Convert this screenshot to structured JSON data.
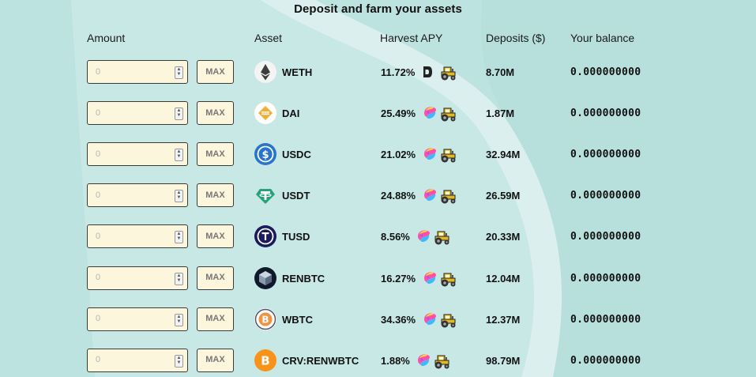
{
  "title": "Deposit and farm your assets",
  "headers": {
    "amount": "Amount",
    "asset": "Asset",
    "apy": "Harvest APY",
    "deposits": "Deposits ($)",
    "balance": "Your balance"
  },
  "max_label": "MAX",
  "amount_placeholder": "0",
  "rows": [
    {
      "asset": "WETH",
      "icon": "ethereum-icon",
      "apy": "11.72%",
      "reward_icon": "dydx-icon",
      "deposits": "8.70M",
      "balance": "0.000000000"
    },
    {
      "asset": "DAI",
      "icon": "dai-icon",
      "apy": "25.49%",
      "reward_icon": "pickle-icon",
      "deposits": "1.87M",
      "balance": "0.000000000"
    },
    {
      "asset": "USDC",
      "icon": "usdc-icon",
      "apy": "21.02%",
      "reward_icon": "pickle-icon",
      "deposits": "32.94M",
      "balance": "0.000000000"
    },
    {
      "asset": "USDT",
      "icon": "tether-icon",
      "apy": "24.88%",
      "reward_icon": "pickle-icon",
      "deposits": "26.59M",
      "balance": "0.000000000"
    },
    {
      "asset": "TUSD",
      "icon": "tusd-icon",
      "apy": "8.56%",
      "reward_icon": "pickle-icon",
      "deposits": "20.33M",
      "balance": "0.000000000"
    },
    {
      "asset": "RENBTC",
      "icon": "renbtc-icon",
      "apy": "16.27%",
      "reward_icon": "pickle-icon",
      "deposits": "12.04M",
      "balance": "0.000000000"
    },
    {
      "asset": "WBTC",
      "icon": "wbtc-icon",
      "apy": "34.36%",
      "reward_icon": "pickle-icon",
      "deposits": "12.37M",
      "balance": "0.000000000"
    },
    {
      "asset": "CRV:RENWBTC",
      "icon": "bitcoin-icon",
      "apy": "1.88%",
      "reward_icon": "pickle-icon",
      "deposits": "98.79M",
      "balance": "0.000000000"
    }
  ],
  "colors": {
    "background": "#bde3e0",
    "input_bg": "#fbf6dc",
    "tractor": "#e2b823"
  }
}
